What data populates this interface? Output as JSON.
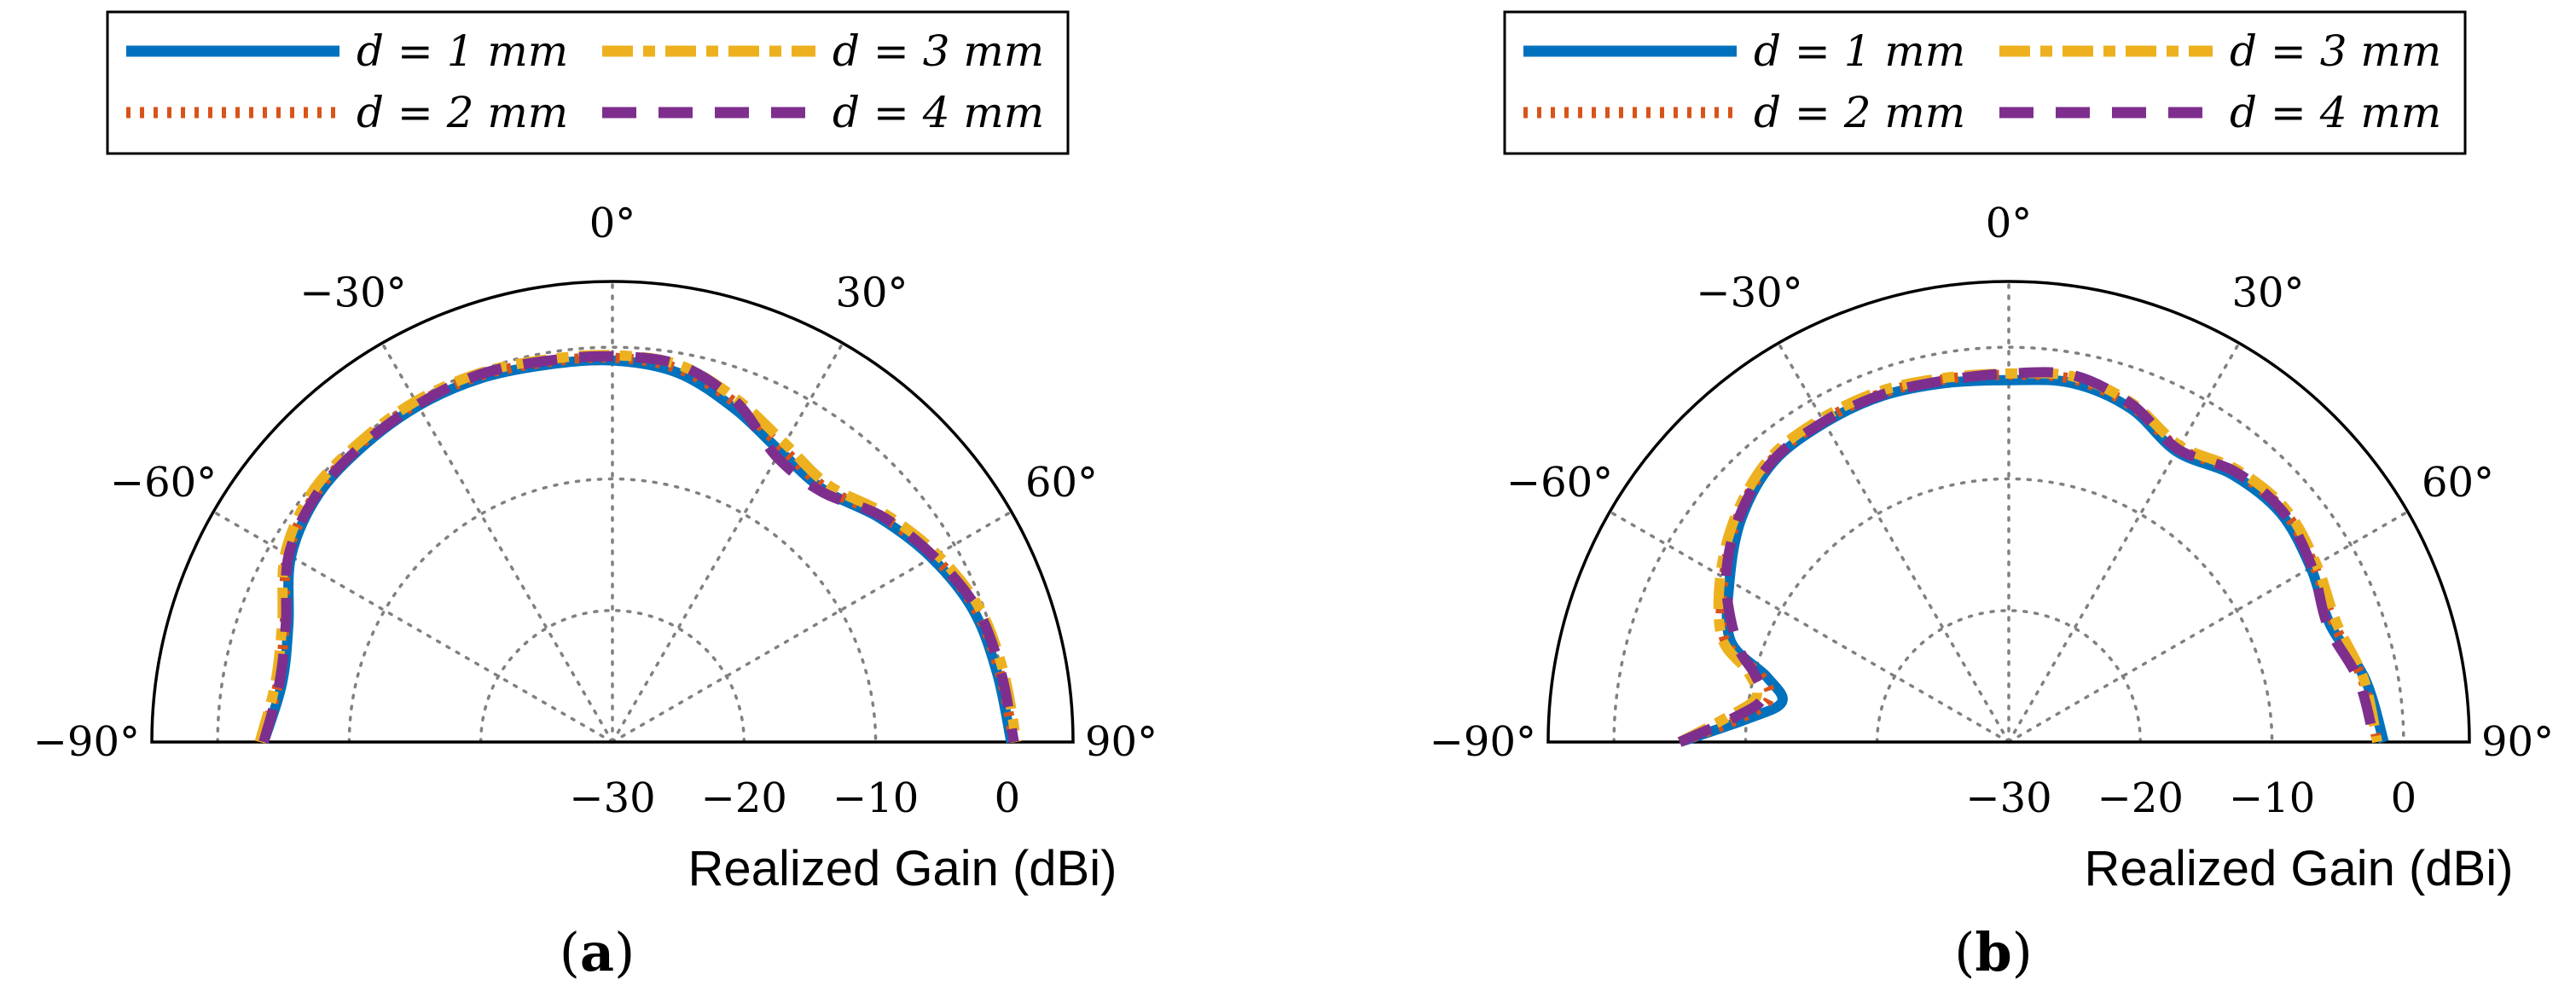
{
  "figure": {
    "panel_labels": [
      "(a)",
      "(b)"
    ],
    "panel_letters": [
      "a",
      "b"
    ]
  },
  "chart_data": [
    {
      "type": "polar-line",
      "panel": "(a)",
      "xlabel": "Realized Gain (dBi)",
      "angle_ticks": [
        "−90°",
        "−60°",
        "−30°",
        "0°",
        "30°",
        "60°",
        "90°"
      ],
      "angle_values": [
        -90,
        -60,
        -30,
        0,
        30,
        60,
        90
      ],
      "radial_ticks": [
        "−30",
        "−20",
        "−10",
        "0"
      ],
      "radial_values": [
        -30,
        -20,
        -10,
        0
      ],
      "rlim": [
        -30,
        5
      ],
      "grid": true,
      "legend_placement": "top",
      "series": [
        {
          "name": "d = 1 mm",
          "color": "#0072BD",
          "dash": "solid",
          "angles": [
            -90,
            -80,
            -70,
            -60,
            -50,
            -40,
            -30,
            -20,
            -10,
            0,
            10,
            20,
            30,
            40,
            50,
            60,
            70,
            80,
            90
          ],
          "values": [
            -3.5,
            -4.5,
            -3.8,
            -1.8,
            -0.8,
            -0.6,
            -0.5,
            -0.6,
            -0.9,
            -1.0,
            -1.5,
            -3.0,
            -4.5,
            -5.0,
            -3.5,
            -2.0,
            -0.8,
            -0.3,
            0.3
          ]
        },
        {
          "name": "d = 2 mm",
          "color": "#D95319",
          "dash": "dotted",
          "angles": [
            -90,
            -80,
            -70,
            -60,
            -50,
            -40,
            -30,
            -20,
            -10,
            0,
            10,
            20,
            30,
            40,
            50,
            60,
            70,
            80,
            90
          ],
          "values": [
            -3.3,
            -4.2,
            -3.5,
            -1.5,
            -0.6,
            -0.4,
            -0.3,
            -0.4,
            -0.7,
            -0.8,
            -1.2,
            -2.6,
            -4.2,
            -4.8,
            -3.3,
            -1.8,
            -0.6,
            -0.1,
            0.5
          ]
        },
        {
          "name": "d = 3 mm",
          "color": "#EDB120",
          "dash": "dashdot",
          "angles": [
            -90,
            -80,
            -70,
            -60,
            -50,
            -40,
            -30,
            -20,
            -10,
            0,
            10,
            20,
            30,
            40,
            50,
            60,
            70,
            80,
            90
          ],
          "values": [
            -3.2,
            -4.0,
            -3.3,
            -1.3,
            -0.3,
            -0.2,
            -0.1,
            -0.2,
            -0.5,
            -0.6,
            -0.9,
            -2.3,
            -3.8,
            -4.5,
            -3.0,
            -1.5,
            -0.3,
            0.2,
            0.7
          ]
        },
        {
          "name": "d = 4 mm",
          "color": "#7E2F8E",
          "dash": "dashed",
          "angles": [
            -90,
            -80,
            -70,
            -60,
            -50,
            -40,
            -30,
            -20,
            -10,
            0,
            10,
            20,
            30,
            40,
            50,
            60,
            70,
            80,
            90
          ],
          "values": [
            -3.5,
            -4.3,
            -3.6,
            -1.6,
            -0.7,
            -0.5,
            -0.4,
            -0.3,
            -0.6,
            -0.7,
            -0.9,
            -2.5,
            -5.0,
            -5.2,
            -3.3,
            -1.8,
            -0.5,
            0.0,
            0.5
          ]
        }
      ]
    },
    {
      "type": "polar-line",
      "panel": "(b)",
      "xlabel": "Realized Gain (dBi)",
      "angle_ticks": [
        "−90°",
        "−60°",
        "−30°",
        "0°",
        "30°",
        "60°",
        "90°"
      ],
      "angle_values": [
        -90,
        -60,
        -30,
        0,
        30,
        60,
        90
      ],
      "radial_ticks": [
        "−30",
        "−20",
        "−10",
        "0"
      ],
      "radial_values": [
        -30,
        -20,
        -10,
        0
      ],
      "rlim": [
        -30,
        5
      ],
      "grid": true,
      "legend_placement": "top",
      "series": [
        {
          "name": "d = 1 mm",
          "color": "#0072BD",
          "dash": "solid",
          "angles": [
            -90,
            -85,
            -80,
            -75,
            -70,
            -60,
            -50,
            -40,
            -30,
            -20,
            -10,
            0,
            10,
            20,
            30,
            40,
            50,
            60,
            70,
            80,
            90
          ],
          "values": [
            -5.0,
            -10.0,
            -12.5,
            -11.0,
            -7.5,
            -5.5,
            -3.5,
            -2.2,
            -2.0,
            -2.0,
            -2.3,
            -2.5,
            -2.3,
            -3.0,
            -4.5,
            -3.5,
            -3.0,
            -3.5,
            -4.0,
            -2.5,
            -1.5
          ]
        },
        {
          "name": "d = 2 mm",
          "color": "#D95319",
          "dash": "dotted",
          "angles": [
            -90,
            -85,
            -80,
            -75,
            -70,
            -60,
            -50,
            -40,
            -30,
            -20,
            -10,
            0,
            10,
            20,
            30,
            40,
            50,
            60,
            70,
            80,
            90
          ],
          "values": [
            -5.0,
            -9.5,
            -11.5,
            -10.5,
            -7.0,
            -5.0,
            -3.2,
            -2.0,
            -1.8,
            -1.8,
            -2.0,
            -2.1,
            -2.0,
            -2.8,
            -4.2,
            -3.2,
            -2.7,
            -3.2,
            -3.7,
            -2.7,
            -2.0
          ]
        },
        {
          "name": "d = 3 mm",
          "color": "#EDB120",
          "dash": "dashdot",
          "angles": [
            -90,
            -85,
            -80,
            -75,
            -70,
            -60,
            -50,
            -40,
            -30,
            -20,
            -10,
            0,
            10,
            20,
            30,
            40,
            50,
            60,
            70,
            80,
            90
          ],
          "values": [
            -5.0,
            -8.5,
            -10.5,
            -9.5,
            -6.8,
            -4.7,
            -3.0,
            -1.8,
            -1.6,
            -1.6,
            -1.9,
            -2.0,
            -1.8,
            -2.6,
            -4.0,
            -3.0,
            -2.5,
            -3.0,
            -3.5,
            -2.6,
            -2.0
          ]
        },
        {
          "name": "d = 4 mm",
          "color": "#7E2F8E",
          "dash": "dashed",
          "angles": [
            -90,
            -85,
            -80,
            -75,
            -70,
            -60,
            -50,
            -40,
            -30,
            -20,
            -10,
            0,
            10,
            20,
            30,
            40,
            50,
            60,
            70,
            80,
            90
          ],
          "values": [
            -5.0,
            -9.0,
            -11.0,
            -10.0,
            -8.0,
            -5.2,
            -3.3,
            -2.1,
            -1.9,
            -1.9,
            -2.1,
            -2.0,
            -1.7,
            -2.7,
            -4.3,
            -3.2,
            -2.8,
            -3.4,
            -4.2,
            -3.0,
            -2.2
          ]
        }
      ]
    }
  ]
}
